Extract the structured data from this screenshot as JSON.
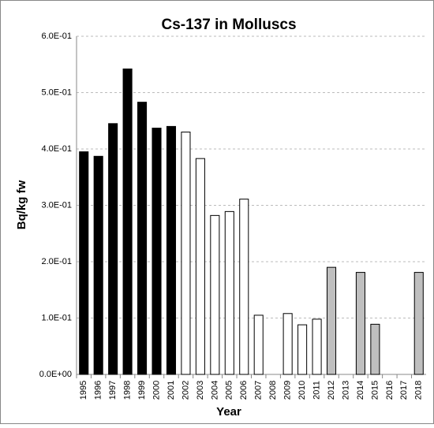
{
  "chart_data": {
    "type": "bar",
    "title": "Cs-137 in Molluscs",
    "x_label": "Year",
    "y_label": "Bq/kg fw",
    "categories": [
      "1995",
      "1996",
      "1997",
      "1998",
      "1999",
      "2000",
      "2001",
      "2002",
      "2003",
      "2004",
      "2005",
      "2006",
      "2007",
      "2008",
      "2009",
      "2010",
      "2011",
      "2012",
      "2013",
      "2014",
      "2015",
      "2016",
      "2017",
      "2018"
    ],
    "values": [
      0.395,
      0.387,
      0.445,
      0.542,
      0.483,
      0.437,
      0.44,
      0.43,
      0.383,
      0.282,
      0.289,
      0.311,
      0.105,
      null,
      0.108,
      0.088,
      0.098,
      0.19,
      null,
      0.181,
      0.089,
      null,
      null,
      0.181
    ],
    "colors": [
      "#000000",
      "#000000",
      "#000000",
      "#000000",
      "#000000",
      "#000000",
      "#000000",
      "#ffffff",
      "#ffffff",
      "#ffffff",
      "#ffffff",
      "#ffffff",
      "#ffffff",
      "#ffffff",
      "#ffffff",
      "#ffffff",
      "#ffffff",
      "#bfbfbf",
      "#bfbfbf",
      "#bfbfbf",
      "#bfbfbf",
      "#bfbfbf",
      "#bfbfbf",
      "#bfbfbf"
    ],
    "ylim": [
      0,
      0.6
    ],
    "yticks": [
      {
        "value": 0,
        "label": "0.0E+00"
      },
      {
        "value": 0.1,
        "label": "1.0E-01"
      },
      {
        "value": 0.2,
        "label": "2.0E-01"
      },
      {
        "value": 0.3,
        "label": "3.0E-01"
      },
      {
        "value": 0.4,
        "label": "4.0E-01"
      },
      {
        "value": 0.5,
        "label": "5.0E-01"
      },
      {
        "value": 0.6,
        "label": "6.0E-01"
      }
    ],
    "grid": true
  }
}
